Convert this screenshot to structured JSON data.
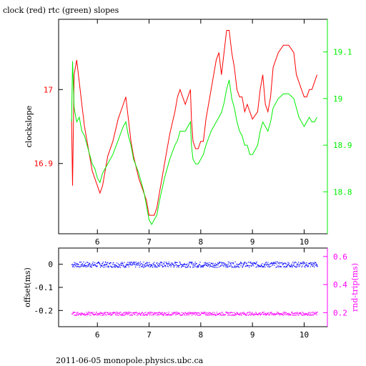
{
  "chart_data": [
    {
      "type": "line",
      "title": "clock (red) rtc (green) slopes",
      "xlabel": "",
      "ylabel": "clockslope",
      "xlim": [
        5.25,
        10.45
      ],
      "ylim": [
        16.805,
        17.095
      ],
      "y2lim": [
        18.71,
        19.17
      ],
      "x_ticks": [
        6,
        7,
        8,
        9,
        10
      ],
      "y_ticks": [
        16.9,
        17
      ],
      "y2_ticks": [
        18.8,
        18.9,
        19,
        19.1
      ],
      "grid": false,
      "colors": {
        "clock": "#ff0000",
        "rtc": "#00ee00",
        "axis": "#000000"
      },
      "series": [
        {
          "axis": "left",
          "points": [
            [
              5.5,
              16.96
            ],
            [
              5.52,
              16.87
            ],
            [
              5.55,
              17.02
            ],
            [
              5.6,
              17.04
            ],
            [
              5.65,
              17.01
            ],
            [
              5.7,
              16.98
            ],
            [
              5.75,
              16.95
            ],
            [
              5.8,
              16.93
            ],
            [
              5.85,
              16.91
            ],
            [
              5.9,
              16.89
            ],
            [
              5.95,
              16.88
            ],
            [
              6.0,
              16.87
            ],
            [
              6.05,
              16.86
            ],
            [
              6.1,
              16.87
            ],
            [
              6.15,
              16.89
            ],
            [
              6.2,
              16.91
            ],
            [
              6.3,
              16.93
            ],
            [
              6.4,
              16.96
            ],
            [
              6.5,
              16.98
            ],
            [
              6.55,
              16.99
            ],
            [
              6.6,
              16.96
            ],
            [
              6.65,
              16.93
            ],
            [
              6.7,
              16.91
            ],
            [
              6.8,
              16.88
            ],
            [
              6.9,
              16.86
            ],
            [
              6.95,
              16.85
            ],
            [
              7.0,
              16.83
            ],
            [
              7.05,
              16.83
            ],
            [
              7.1,
              16.83
            ],
            [
              7.15,
              16.84
            ],
            [
              7.2,
              16.86
            ],
            [
              7.3,
              16.9
            ],
            [
              7.4,
              16.94
            ],
            [
              7.5,
              16.97
            ],
            [
              7.55,
              16.99
            ],
            [
              7.6,
              17.0
            ],
            [
              7.65,
              16.99
            ],
            [
              7.7,
              16.98
            ],
            [
              7.75,
              16.99
            ],
            [
              7.8,
              17.0
            ],
            [
              7.82,
              16.96
            ],
            [
              7.85,
              16.93
            ],
            [
              7.9,
              16.92
            ],
            [
              7.95,
              16.92
            ],
            [
              8.0,
              16.93
            ],
            [
              8.05,
              16.93
            ],
            [
              8.1,
              16.96
            ],
            [
              8.2,
              17.0
            ],
            [
              8.3,
              17.04
            ],
            [
              8.35,
              17.05
            ],
            [
              8.4,
              17.02
            ],
            [
              8.45,
              17.05
            ],
            [
              8.5,
              17.08
            ],
            [
              8.55,
              17.08
            ],
            [
              8.6,
              17.05
            ],
            [
              8.65,
              17.03
            ],
            [
              8.7,
              17.0
            ],
            [
              8.75,
              16.99
            ],
            [
              8.8,
              16.99
            ],
            [
              8.85,
              16.97
            ],
            [
              8.9,
              16.98
            ],
            [
              8.95,
              16.97
            ],
            [
              9.0,
              16.96
            ],
            [
              9.1,
              16.97
            ],
            [
              9.15,
              17.0
            ],
            [
              9.2,
              17.02
            ],
            [
              9.25,
              16.98
            ],
            [
              9.3,
              16.97
            ],
            [
              9.35,
              16.99
            ],
            [
              9.4,
              17.03
            ],
            [
              9.5,
              17.05
            ],
            [
              9.6,
              17.06
            ],
            [
              9.7,
              17.06
            ],
            [
              9.8,
              17.05
            ],
            [
              9.85,
              17.02
            ],
            [
              9.9,
              17.01
            ],
            [
              9.95,
              17.0
            ],
            [
              10.0,
              16.99
            ],
            [
              10.05,
              16.99
            ],
            [
              10.1,
              17.0
            ],
            [
              10.15,
              17.0
            ],
            [
              10.2,
              17.01
            ],
            [
              10.25,
              17.02
            ]
          ]
        },
        {
          "axis": "right",
          "points": [
            [
              5.5,
              18.95
            ],
            [
              5.52,
              19.08
            ],
            [
              5.55,
              18.98
            ],
            [
              5.6,
              18.95
            ],
            [
              5.65,
              18.96
            ],
            [
              5.7,
              18.93
            ],
            [
              5.75,
              18.92
            ],
            [
              5.8,
              18.9
            ],
            [
              5.85,
              18.88
            ],
            [
              5.9,
              18.86
            ],
            [
              5.95,
              18.85
            ],
            [
              6.0,
              18.83
            ],
            [
              6.05,
              18.82
            ],
            [
              6.1,
              18.84
            ],
            [
              6.15,
              18.85
            ],
            [
              6.2,
              18.86
            ],
            [
              6.3,
              18.88
            ],
            [
              6.4,
              18.91
            ],
            [
              6.5,
              18.94
            ],
            [
              6.55,
              18.95
            ],
            [
              6.6,
              18.92
            ],
            [
              6.65,
              18.9
            ],
            [
              6.7,
              18.87
            ],
            [
              6.8,
              18.84
            ],
            [
              6.9,
              18.8
            ],
            [
              6.95,
              18.77
            ],
            [
              7.0,
              18.74
            ],
            [
              7.05,
              18.73
            ],
            [
              7.1,
              18.74
            ],
            [
              7.15,
              18.75
            ],
            [
              7.2,
              18.78
            ],
            [
              7.3,
              18.83
            ],
            [
              7.4,
              18.87
            ],
            [
              7.5,
              18.9
            ],
            [
              7.55,
              18.91
            ],
            [
              7.6,
              18.93
            ],
            [
              7.65,
              18.93
            ],
            [
              7.7,
              18.93
            ],
            [
              7.75,
              18.94
            ],
            [
              7.8,
              18.95
            ],
            [
              7.82,
              18.9
            ],
            [
              7.85,
              18.87
            ],
            [
              7.9,
              18.86
            ],
            [
              7.95,
              18.86
            ],
            [
              8.0,
              18.87
            ],
            [
              8.05,
              18.88
            ],
            [
              8.1,
              18.9
            ],
            [
              8.2,
              18.93
            ],
            [
              8.3,
              18.95
            ],
            [
              8.35,
              18.96
            ],
            [
              8.4,
              18.97
            ],
            [
              8.45,
              18.99
            ],
            [
              8.5,
              19.02
            ],
            [
              8.55,
              19.04
            ],
            [
              8.6,
              19.0
            ],
            [
              8.65,
              18.98
            ],
            [
              8.7,
              18.95
            ],
            [
              8.75,
              18.93
            ],
            [
              8.8,
              18.92
            ],
            [
              8.85,
              18.9
            ],
            [
              8.9,
              18.9
            ],
            [
              8.95,
              18.88
            ],
            [
              9.0,
              18.88
            ],
            [
              9.1,
              18.9
            ],
            [
              9.15,
              18.93
            ],
            [
              9.2,
              18.95
            ],
            [
              9.25,
              18.94
            ],
            [
              9.3,
              18.93
            ],
            [
              9.35,
              18.95
            ],
            [
              9.4,
              18.98
            ],
            [
              9.5,
              19.0
            ],
            [
              9.6,
              19.01
            ],
            [
              9.7,
              19.01
            ],
            [
              9.8,
              19.0
            ],
            [
              9.85,
              18.98
            ],
            [
              9.9,
              18.96
            ],
            [
              9.95,
              18.95
            ],
            [
              10.0,
              18.94
            ],
            [
              10.05,
              18.95
            ],
            [
              10.1,
              18.96
            ],
            [
              10.15,
              18.95
            ],
            [
              10.2,
              18.95
            ],
            [
              10.25,
              18.96
            ]
          ]
        }
      ]
    },
    {
      "type": "scatter",
      "title": "",
      "xlabel": "",
      "ylabel": "offset(ms)",
      "y2label": "rnd-trip(ms)",
      "xlim": [
        5.25,
        10.45
      ],
      "ylim": [
        -0.27,
        0.07
      ],
      "y2lim": [
        0.1,
        0.66
      ],
      "x_ticks": [
        6,
        7,
        8,
        9,
        10
      ],
      "y_ticks": [
        0,
        -0.1,
        -0.2
      ],
      "y2_ticks": [
        0.2,
        0.4,
        0.6
      ],
      "grid": false,
      "colors": {
        "offset": "#0000ff",
        "rndtrip": "#ff00ff",
        "axis": "#000000"
      },
      "series": [
        {
          "axis": "left",
          "x_start": 5.5,
          "x_end": 10.25,
          "mean": 0.0,
          "spread": 0.012
        },
        {
          "axis": "right",
          "x_start": 5.5,
          "x_end": 10.25,
          "mean": 0.195,
          "spread": 0.012
        }
      ]
    }
  ],
  "footer": "2011-06-05 monopole.physics.ubc.ca"
}
